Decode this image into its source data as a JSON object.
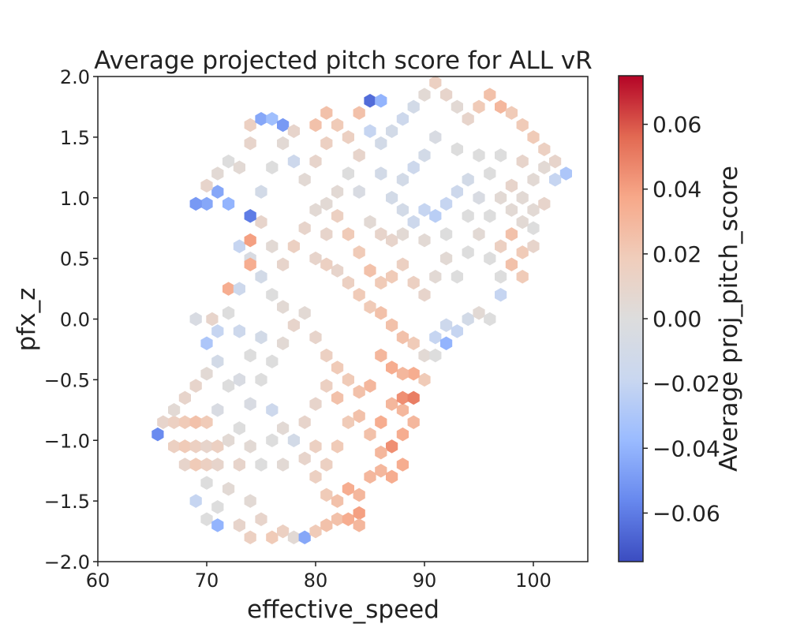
{
  "chart_data": {
    "type": "heatmap",
    "style": "hexbin",
    "title": "Average projected pitch score for ALL vR",
    "xlabel": "effective_speed",
    "ylabel": "pfx_z",
    "xlim": [
      60,
      105
    ],
    "ylim": [
      -2.0,
      2.0
    ],
    "x_ticks": [
      60,
      70,
      80,
      90,
      100
    ],
    "x_tick_labels": [
      "60",
      "70",
      "80",
      "90",
      "100"
    ],
    "y_ticks": [
      -2.0,
      -1.5,
      -1.0,
      -0.5,
      0.0,
      0.5,
      1.0,
      1.5,
      2.0
    ],
    "y_tick_labels": [
      "−2.0",
      "−1.5",
      "−1.0",
      "−0.5",
      "0.0",
      "0.5",
      "1.0",
      "1.5",
      "2.0"
    ],
    "grid": false,
    "colormap": "coolwarm",
    "colorbar": {
      "label": "Average proj_pitch_score",
      "vmin": -0.075,
      "vmax": 0.075,
      "ticks": [
        0.06,
        0.04,
        0.02,
        0.0,
        -0.02,
        -0.04,
        -0.06
      ],
      "tick_labels": [
        "0.06",
        "0.04",
        "0.02",
        "0.00",
        "−0.02",
        "−0.04",
        "−0.06"
      ],
      "colors": [
        "#3b4cc0",
        "#6788ee",
        "#9abbff",
        "#c9d7f0",
        "#dddddd",
        "#f0cdbb",
        "#f7a889",
        "#e26952",
        "#b40426"
      ]
    },
    "bins": [
      [
        65.5,
        -0.95,
        -0.055
      ],
      [
        66,
        -0.85,
        0.01
      ],
      [
        67,
        -0.85,
        0.015
      ],
      [
        68,
        -0.85,
        0.02
      ],
      [
        69,
        -0.85,
        0.025
      ],
      [
        70,
        -0.85,
        0.02
      ],
      [
        67,
        -1.05,
        0.015
      ],
      [
        68,
        -1.05,
        0.02
      ],
      [
        69,
        -1.05,
        0.015
      ],
      [
        70,
        -1.05,
        0.01
      ],
      [
        71,
        -1.05,
        0.015
      ],
      [
        68,
        -1.2,
        0.01
      ],
      [
        69,
        -1.2,
        0.02
      ],
      [
        70,
        -1.2,
        0.015
      ],
      [
        71,
        -1.2,
        0.01
      ],
      [
        67,
        -0.75,
        0.005
      ],
      [
        68,
        -0.65,
        0.01
      ],
      [
        69,
        -0.55,
        0.01
      ],
      [
        70,
        -0.45,
        0.005
      ],
      [
        70,
        -0.2,
        -0.03
      ],
      [
        71,
        -0.1,
        -0.02
      ],
      [
        69,
        0.0,
        -0.005
      ],
      [
        70.5,
        0.0,
        0.01
      ],
      [
        72,
        0.05,
        0.0
      ],
      [
        71,
        -0.35,
        -0.01
      ],
      [
        72,
        -0.55,
        0.0
      ],
      [
        71,
        -0.75,
        -0.005
      ],
      [
        72,
        -1.0,
        0.005
      ],
      [
        73,
        -0.9,
        0.0
      ],
      [
        72,
        -1.4,
        0.005
      ],
      [
        71,
        -1.55,
        0.0
      ],
      [
        70,
        -1.65,
        0.0
      ],
      [
        71,
        -1.7,
        -0.04
      ],
      [
        69,
        -1.5,
        -0.02
      ],
      [
        70,
        -1.35,
        0.0
      ],
      [
        73,
        -1.2,
        0.01
      ],
      [
        74,
        -1.05,
        0.005
      ],
      [
        75,
        -1.2,
        0.0
      ],
      [
        74,
        -1.5,
        0.005
      ],
      [
        73,
        -1.7,
        0.01
      ],
      [
        74,
        -1.8,
        0.015
      ],
      [
        75,
        -1.65,
        0.01
      ],
      [
        76,
        -1.8,
        0.02
      ],
      [
        77,
        -1.75,
        0.015
      ],
      [
        78,
        -1.8,
        0.005
      ],
      [
        79,
        -1.8,
        -0.045
      ],
      [
        80,
        -1.75,
        0.02
      ],
      [
        81,
        -1.7,
        0.025
      ],
      [
        82,
        -1.65,
        0.025
      ],
      [
        83,
        -1.65,
        0.035
      ],
      [
        84,
        -1.6,
        0.04
      ],
      [
        84,
        -1.7,
        0.03
      ],
      [
        73,
        -0.5,
        -0.005
      ],
      [
        74,
        -0.3,
        0.0
      ],
      [
        75,
        -0.15,
        -0.01
      ],
      [
        73,
        -0.1,
        -0.015
      ],
      [
        74,
        -0.7,
        -0.005
      ],
      [
        75,
        -0.5,
        0.0
      ],
      [
        76,
        -0.75,
        -0.015
      ],
      [
        77,
        -0.9,
        0.005
      ],
      [
        76,
        -1.0,
        0.0
      ],
      [
        77,
        -1.2,
        0.005
      ],
      [
        78,
        -1.0,
        -0.01
      ],
      [
        79,
        -1.15,
        0.01
      ],
      [
        80,
        -1.3,
        0.015
      ],
      [
        81,
        -1.45,
        0.02
      ],
      [
        82,
        -1.5,
        0.025
      ],
      [
        83,
        -1.4,
        0.035
      ],
      [
        84,
        -1.45,
        0.03
      ],
      [
        85,
        -1.3,
        0.03
      ],
      [
        86,
        -1.25,
        0.03
      ],
      [
        87,
        -1.3,
        0.035
      ],
      [
        88,
        -1.2,
        0.035
      ],
      [
        87,
        -1.05,
        0.045
      ],
      [
        88,
        -0.95,
        0.035
      ],
      [
        89,
        -0.85,
        0.03
      ],
      [
        88,
        -0.75,
        0.03
      ],
      [
        86,
        -1.1,
        0.03
      ],
      [
        85,
        -0.95,
        0.025
      ],
      [
        84,
        -0.8,
        0.025
      ],
      [
        86,
        -0.85,
        0.035
      ],
      [
        87,
        -0.7,
        0.03
      ],
      [
        88,
        -0.65,
        0.045
      ],
      [
        89,
        -0.65,
        0.05
      ],
      [
        90,
        -0.5,
        0.02
      ],
      [
        89,
        -0.45,
        0.035
      ],
      [
        88,
        -0.45,
        0.03
      ],
      [
        87,
        -0.4,
        0.035
      ],
      [
        86,
        -0.3,
        0.03
      ],
      [
        85,
        -0.55,
        0.03
      ],
      [
        84,
        -0.6,
        0.025
      ],
      [
        83,
        -0.5,
        0.02
      ],
      [
        82,
        -0.65,
        0.025
      ],
      [
        83,
        -0.85,
        0.02
      ],
      [
        82,
        -1.05,
        0.02
      ],
      [
        81,
        -1.2,
        0.015
      ],
      [
        80,
        -1.05,
        0.015
      ],
      [
        79,
        -0.85,
        0.01
      ],
      [
        80,
        -0.7,
        0.01
      ],
      [
        81,
        -0.55,
        0.015
      ],
      [
        82,
        -0.4,
        0.02
      ],
      [
        90,
        -0.3,
        0.005
      ],
      [
        91,
        -0.3,
        0.0
      ],
      [
        91,
        -0.15,
        -0.02
      ],
      [
        92,
        -0.2,
        -0.04
      ],
      [
        92,
        -0.05,
        -0.015
      ],
      [
        93,
        -0.1,
        -0.02
      ],
      [
        94,
        0.0,
        -0.01
      ],
      [
        95,
        0.05,
        0.005
      ],
      [
        96,
        0.0,
        0.0
      ],
      [
        89,
        -0.2,
        0.02
      ],
      [
        88,
        -0.15,
        0.025
      ],
      [
        87,
        -0.05,
        0.025
      ],
      [
        86,
        0.05,
        0.025
      ],
      [
        85,
        0.1,
        0.02
      ],
      [
        84,
        0.2,
        0.02
      ],
      [
        83,
        0.3,
        0.015
      ],
      [
        82,
        0.4,
        0.01
      ],
      [
        81,
        0.45,
        0.015
      ],
      [
        80,
        0.5,
        0.01
      ],
      [
        76,
        -0.35,
        0.0
      ],
      [
        77,
        -0.2,
        0.005
      ],
      [
        78,
        -0.05,
        0.01
      ],
      [
        79,
        0.05,
        0.005
      ],
      [
        80,
        -0.15,
        0.01
      ],
      [
        81,
        -0.3,
        0.015
      ],
      [
        77,
        0.1,
        0.005
      ],
      [
        76,
        0.2,
        0.0
      ],
      [
        75,
        0.35,
        -0.01
      ],
      [
        74,
        0.5,
        -0.005
      ],
      [
        73,
        0.6,
        -0.02
      ],
      [
        72,
        0.25,
        0.035
      ],
      [
        73,
        0.25,
        -0.015
      ],
      [
        74,
        0.45,
        0.035
      ],
      [
        74,
        0.65,
        0.04
      ],
      [
        75,
        0.8,
        0.01
      ],
      [
        76,
        0.6,
        0.005
      ],
      [
        77,
        0.45,
        0.01
      ],
      [
        78,
        0.6,
        0.015
      ],
      [
        79,
        0.75,
        0.01
      ],
      [
        80,
        0.9,
        0.005
      ],
      [
        81,
        0.7,
        0.01
      ],
      [
        82,
        0.85,
        0.015
      ],
      [
        83,
        0.7,
        0.02
      ],
      [
        84,
        0.55,
        0.02
      ],
      [
        85,
        0.4,
        0.025
      ],
      [
        86,
        0.3,
        0.02
      ],
      [
        87,
        0.35,
        0.02
      ],
      [
        88,
        0.45,
        0.015
      ],
      [
        89,
        0.3,
        0.015
      ],
      [
        90,
        0.2,
        0.01
      ],
      [
        91,
        0.35,
        0.005
      ],
      [
        92,
        0.5,
        0.005
      ],
      [
        93,
        0.35,
        0.0
      ],
      [
        94,
        0.55,
        0.0
      ],
      [
        95,
        0.7,
        0.005
      ],
      [
        96,
        0.5,
        0.0
      ],
      [
        97,
        0.35,
        0.0
      ],
      [
        97,
        0.6,
        0.015
      ],
      [
        98,
        0.7,
        0.025
      ],
      [
        99,
        0.55,
        0.02
      ],
      [
        98,
        0.45,
        0.025
      ],
      [
        99,
        0.35,
        0.02
      ],
      [
        97,
        0.2,
        -0.02
      ],
      [
        72,
        0.95,
        -0.04
      ],
      [
        71,
        1.05,
        -0.045
      ],
      [
        70,
        0.95,
        -0.045
      ],
      [
        69,
        0.95,
        -0.05
      ],
      [
        70,
        1.1,
        0.01
      ],
      [
        71,
        1.2,
        0.005
      ],
      [
        72,
        1.3,
        0.0
      ],
      [
        73,
        1.25,
        0.005
      ],
      [
        74,
        0.85,
        -0.06
      ],
      [
        75,
        1.05,
        -0.01
      ],
      [
        76,
        1.25,
        0.0
      ],
      [
        74,
        1.45,
        0.01
      ],
      [
        74,
        1.6,
        0.015
      ],
      [
        75,
        1.65,
        -0.045
      ],
      [
        76,
        1.65,
        -0.035
      ],
      [
        77,
        1.6,
        -0.05
      ],
      [
        78,
        1.55,
        0.01
      ],
      [
        77,
        1.45,
        0.005
      ],
      [
        78,
        1.3,
        -0.015
      ],
      [
        79,
        1.15,
        0.005
      ],
      [
        80,
        1.3,
        0.01
      ],
      [
        80,
        1.6,
        0.025
      ],
      [
        81,
        1.7,
        0.025
      ],
      [
        82,
        1.6,
        0.02
      ],
      [
        83,
        1.5,
        0.015
      ],
      [
        81,
        1.45,
        0.015
      ],
      [
        84,
        1.7,
        0.025
      ],
      [
        85,
        1.8,
        -0.065
      ],
      [
        86,
        1.8,
        -0.04
      ],
      [
        84,
        1.35,
        0.01
      ],
      [
        85,
        1.55,
        -0.02
      ],
      [
        86,
        1.45,
        -0.01
      ],
      [
        87,
        1.55,
        -0.01
      ],
      [
        88,
        1.65,
        -0.015
      ],
      [
        89,
        1.75,
        -0.01
      ],
      [
        90,
        1.85,
        0.005
      ],
      [
        91,
        1.95,
        0.015
      ],
      [
        92,
        1.85,
        0.01
      ],
      [
        93,
        1.75,
        0.005
      ],
      [
        94,
        1.65,
        0.01
      ],
      [
        95,
        1.75,
        0.02
      ],
      [
        96,
        1.85,
        0.025
      ],
      [
        97,
        1.75,
        0.03
      ],
      [
        98,
        1.7,
        0.02
      ],
      [
        99,
        1.6,
        0.02
      ],
      [
        100,
        1.5,
        0.02
      ],
      [
        101,
        1.4,
        0.015
      ],
      [
        102,
        1.3,
        0.01
      ],
      [
        103,
        1.2,
        -0.03
      ],
      [
        102,
        1.15,
        -0.02
      ],
      [
        86,
        1.2,
        -0.01
      ],
      [
        87,
        1.0,
        -0.01
      ],
      [
        88,
        0.9,
        -0.01
      ],
      [
        89,
        0.8,
        -0.015
      ],
      [
        90,
        0.9,
        -0.02
      ],
      [
        91,
        0.85,
        -0.025
      ],
      [
        92,
        0.95,
        -0.02
      ],
      [
        93,
        1.05,
        -0.015
      ],
      [
        94,
        1.15,
        -0.01
      ],
      [
        95,
        1.0,
        -0.005
      ],
      [
        96,
        1.2,
        0.0
      ],
      [
        97,
        1.0,
        0.005
      ],
      [
        98,
        1.1,
        0.01
      ],
      [
        99,
        1.0,
        0.005
      ],
      [
        100,
        0.9,
        0.005
      ],
      [
        101,
        0.95,
        0.01
      ],
      [
        100,
        1.15,
        0.005
      ],
      [
        101,
        1.25,
        0.005
      ],
      [
        99,
        1.3,
        0.01
      ],
      [
        97,
        1.35,
        0.0
      ],
      [
        95,
        1.35,
        0.0
      ],
      [
        93,
        1.4,
        0.0
      ],
      [
        91,
        1.5,
        -0.005
      ],
      [
        90,
        1.35,
        -0.01
      ],
      [
        89,
        1.25,
        -0.015
      ],
      [
        88,
        1.15,
        -0.01
      ],
      [
        84,
        1.05,
        -0.005
      ],
      [
        83,
        1.2,
        0.0
      ],
      [
        82,
        1.05,
        0.005
      ],
      [
        81,
        0.95,
        0.005
      ],
      [
        85,
        0.8,
        0.005
      ],
      [
        86,
        0.7,
        0.01
      ],
      [
        87,
        0.65,
        0.01
      ],
      [
        88,
        0.7,
        0.005
      ],
      [
        90,
        0.65,
        0.005
      ],
      [
        92,
        0.7,
        0.0
      ],
      [
        94,
        0.85,
        0.0
      ],
      [
        96,
        0.85,
        0.0
      ],
      [
        98,
        0.9,
        0.005
      ],
      [
        100,
        0.75,
        0.0
      ],
      [
        100,
        0.6,
        0.01
      ],
      [
        99,
        0.8,
        0.005
      ]
    ]
  }
}
